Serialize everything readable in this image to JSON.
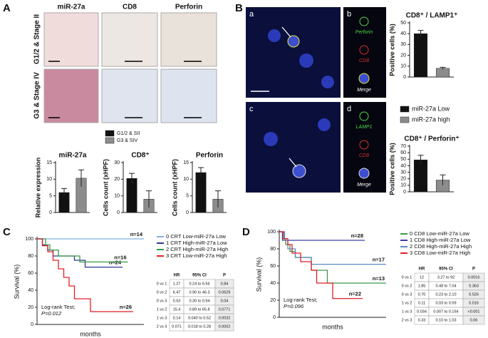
{
  "panel_labels": [
    "A",
    "B",
    "C",
    "D"
  ],
  "panel_a": {
    "column_headers": [
      "miR-27a",
      "CD8",
      "Perforin"
    ],
    "row_labels": [
      "G1/2 & Stage II",
      "G3 & Stage IV"
    ]
  },
  "legend_a": {
    "names": [
      "G1/2 & SII",
      "G3 & SIV"
    ],
    "colors": [
      "#111111",
      "#8c8c8c"
    ]
  },
  "panel_b": {
    "image_labels": [
      "a",
      "b",
      "c",
      "d"
    ],
    "channel_labels": [
      "Perforin",
      "CD8",
      "Merge",
      "LAMP1",
      "CD8",
      "Merge"
    ]
  },
  "legend_b": {
    "names": [
      "miR-27a Low",
      "miR-27a high"
    ],
    "colors": [
      "#111111",
      "#8c8c8c"
    ]
  },
  "chart_data": [
    {
      "type": "bar",
      "title": "miR-27a",
      "ylabel": "Relative expression",
      "values": [
        6,
        10.3
      ],
      "errors": [
        1.2,
        2.5
      ],
      "ylim": [
        0,
        15
      ],
      "yticks": [
        0,
        5,
        10,
        15
      ]
    },
    {
      "type": "bar",
      "title": "CD8⁺",
      "ylabel": "Cells count (xHPF)",
      "values": [
        20.5,
        8
      ],
      "errors": [
        3,
        5
      ],
      "ylim": [
        0,
        30
      ],
      "yticks": [
        0,
        10,
        20,
        30
      ]
    },
    {
      "type": "bar",
      "title": "Perforin",
      "ylabel": "Cells count (xHPF)",
      "values": [
        12,
        4
      ],
      "errors": [
        1.5,
        2.5
      ],
      "ylim": [
        0,
        15
      ],
      "yticks": [
        0,
        5,
        10,
        15
      ]
    },
    {
      "type": "bar",
      "title": "CD8⁺ / LAMP1⁺",
      "ylabel": "Positive cells (%)",
      "values": [
        40,
        8
      ],
      "errors": [
        3,
        1
      ],
      "ylim": [
        0,
        50
      ],
      "yticks": [
        0,
        10,
        20,
        30,
        40,
        50
      ]
    },
    {
      "type": "bar",
      "title": "CD8⁺ / Perforin⁺",
      "ylabel": "Positive cells (%)",
      "values": [
        49,
        18
      ],
      "errors": [
        7,
        8
      ],
      "ylim": [
        0,
        70
      ],
      "yticks": [
        0,
        10,
        20,
        30,
        40,
        50,
        60,
        70
      ]
    },
    {
      "type": "line",
      "ylabel": "Survival (%)",
      "xlabel": "months",
      "xlim": [
        0,
        100
      ],
      "ylim": [
        0,
        100
      ],
      "yticks": [
        0,
        20,
        40,
        60,
        80,
        100
      ],
      "annotation": [
        "Log-rank Test;",
        "P=0.012"
      ],
      "series": [
        {
          "name": "0 CRT Low-miR-27a Low",
          "color": "#7fb2e5",
          "n_label": "n=14",
          "x": [
            0,
            100
          ],
          "values": [
            100,
            100
          ]
        },
        {
          "name": "1 CRT High-miR-27a Low",
          "color": "#2b3990",
          "n_label": "n=24",
          "x": [
            0,
            5,
            10,
            15,
            35,
            45,
            80
          ],
          "values": [
            100,
            93,
            87,
            80,
            75,
            67,
            67
          ]
        },
        {
          "name": "2 CRT High-miR-27a High",
          "color": "#3a9a47",
          "n_label": "n=16",
          "x": [
            0,
            8,
            12,
            20,
            40,
            85
          ],
          "values": [
            100,
            93,
            87,
            80,
            73,
            73
          ]
        },
        {
          "name": "3 CRT Low-miR-27a High",
          "color": "#e31e24",
          "n_label": "n=26",
          "x": [
            0,
            5,
            10,
            15,
            20,
            25,
            30,
            35,
            45,
            50,
            90
          ],
          "values": [
            100,
            92,
            85,
            75,
            65,
            55,
            45,
            30,
            30,
            15,
            15
          ]
        }
      ]
    },
    {
      "type": "line",
      "ylabel": "Survival (%)",
      "xlabel": "months",
      "xlim": [
        0,
        100
      ],
      "ylim": [
        0,
        100
      ],
      "yticks": [
        0,
        20,
        40,
        60,
        80,
        100
      ],
      "annotation": [
        "Log-rank Test;",
        "P=0.096"
      ],
      "series": [
        {
          "name": "0 CD8 Low-miR-27a Low",
          "color": "#3a9a47",
          "n_label": "n=13",
          "x": [
            0,
            3,
            6,
            10,
            15,
            30,
            45,
            100
          ],
          "values": [
            100,
            92,
            85,
            77,
            70,
            55,
            40,
            40
          ]
        },
        {
          "name": "1 CD8 High-miR-27a Low",
          "color": "#3b3fa0",
          "n_label": "n=28",
          "x": [
            0,
            3,
            80
          ],
          "values": [
            100,
            90,
            90
          ]
        },
        {
          "name": "2 CD8 High-miR-27a High",
          "color": "#5b8ac4",
          "n_label": "n=17",
          "x": [
            0,
            5,
            8,
            15,
            30,
            100
          ],
          "values": [
            100,
            90,
            80,
            70,
            62,
            62
          ]
        },
        {
          "name": "3 CD8 Low-miR-27a High",
          "color": "#e31e24",
          "n_label": "n=22",
          "x": [
            0,
            4,
            8,
            12,
            20,
            30,
            35,
            50,
            78
          ],
          "values": [
            100,
            92,
            85,
            75,
            65,
            55,
            40,
            22,
            22
          ]
        }
      ]
    }
  ],
  "tables": [
    {
      "columns": [
        "HR",
        "95% CI",
        "P"
      ],
      "rows": [
        [
          "0 vs 1",
          "1.27",
          "0.24 to 6.56",
          "0.84"
        ],
        [
          "0 vs 2",
          "6.47",
          "0.90 to 46.3",
          "0.0629"
        ],
        [
          "0 vs 3",
          "0.53",
          "0.30 to 0.94",
          "0.04"
        ],
        [
          "1 vs 2",
          "15.4",
          "0.89 to 65.8",
          "0.0771"
        ],
        [
          "1 vs 3",
          "0.14",
          "0.040 to 0.52",
          "0.0032"
        ],
        [
          "2 vs 3",
          "0.071",
          "0.018 to 0.28",
          "0.0002"
        ]
      ]
    },
    {
      "columns": [
        "HR",
        "95% CI",
        "P"
      ],
      "rows": [
        [
          "0 vs 1",
          "12",
          "3.27 to 92",
          "0.0016"
        ],
        [
          "0 vs 2",
          "1.85",
          "0.48 to 7.04",
          "0.363"
        ],
        [
          "0 vs 3",
          "0.70",
          "0.23 to 2.10",
          "0.526"
        ],
        [
          "1 vs 2",
          "0.11",
          "0.03 to 0.59",
          "0.016"
        ],
        [
          "1 vs 3",
          "0.034",
          "0.007 to 0.154",
          "<0.001"
        ],
        [
          "2 vs 3",
          "0.33",
          "0.10 to 1.03",
          "0.06"
        ]
      ]
    }
  ]
}
